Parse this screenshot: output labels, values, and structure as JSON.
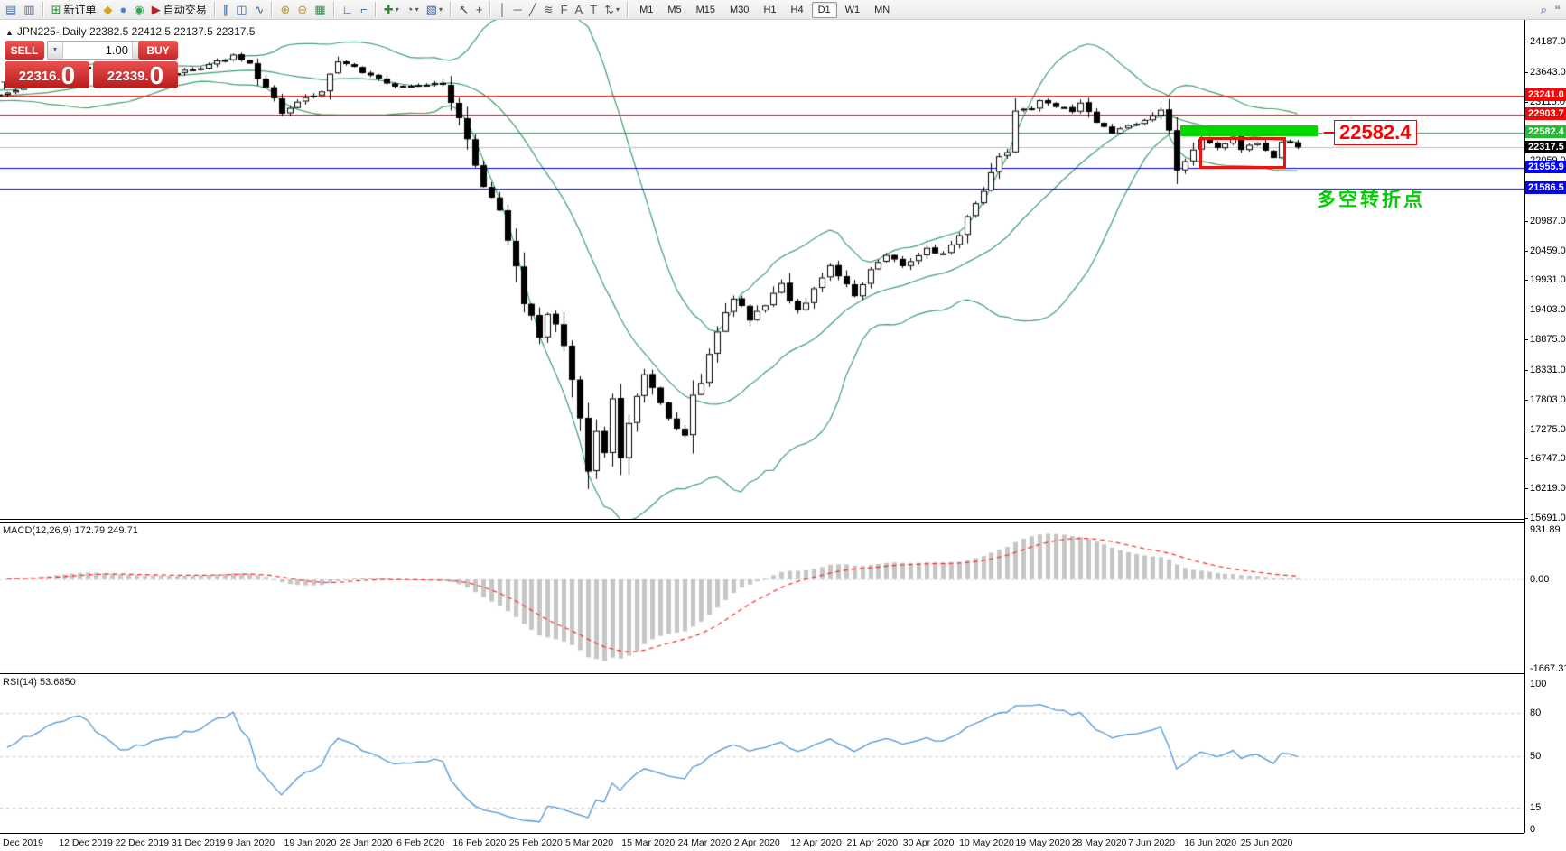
{
  "toolbar": {
    "items": [
      {
        "name": "market-watch-icon",
        "glyph": "▤",
        "color": "#4a6fa5"
      },
      {
        "name": "data-window-icon",
        "glyph": "▥",
        "color": "#4a6fa5"
      },
      {
        "sep": true
      },
      {
        "name": "new-order-icon",
        "glyph": "⊞",
        "color": "#2e8b2e",
        "label": "新订单"
      },
      {
        "name": "metaeditor-icon",
        "glyph": "◆",
        "color": "#d9a520"
      },
      {
        "name": "experts-icon",
        "glyph": "●",
        "color": "#4a84d4"
      },
      {
        "name": "signals-icon",
        "glyph": "◉",
        "color": "#2faa4a"
      },
      {
        "name": "autotrading-icon",
        "glyph": "▶",
        "color": "#bb2222",
        "label": "自动交易"
      },
      {
        "sep": true
      },
      {
        "name": "bar-chart-icon",
        "glyph": "∥",
        "color": "#37639b"
      },
      {
        "name": "candlestick-chart-icon",
        "glyph": "◫",
        "color": "#37639b"
      },
      {
        "name": "line-chart-icon",
        "glyph": "∿",
        "color": "#37639b"
      },
      {
        "sep": true
      },
      {
        "name": "zoom-in-icon",
        "glyph": "⊕",
        "color": "#b8962e"
      },
      {
        "name": "zoom-out-icon",
        "glyph": "⊖",
        "color": "#b8962e"
      },
      {
        "name": "tile-windows-icon",
        "glyph": "▦",
        "color": "#3b8c4a"
      },
      {
        "sep": true
      },
      {
        "name": "chart-shift-icon",
        "glyph": "∟",
        "color": "#37639b"
      },
      {
        "name": "auto-scroll-icon",
        "glyph": "⌐",
        "color": "#37639b"
      },
      {
        "sep": true
      },
      {
        "name": "indicators-icon",
        "glyph": "✚",
        "color": "#2e8b2e",
        "dd": true
      },
      {
        "name": "periods-icon",
        "glyph": "◔",
        "color": "#37639b",
        "dd": true
      },
      {
        "name": "templates-icon",
        "glyph": "▧",
        "color": "#37639b",
        "dd": true
      },
      {
        "sep": true
      },
      {
        "name": "cursor-icon",
        "glyph": "↖",
        "color": "#333333"
      },
      {
        "name": "crosshair-icon",
        "glyph": "+",
        "color": "#333333"
      },
      {
        "sep": true
      },
      {
        "name": "vertical-line-icon",
        "glyph": "│",
        "color": "#555555"
      },
      {
        "name": "horizontal-line-icon",
        "glyph": "─",
        "color": "#555555"
      },
      {
        "name": "trendline-icon",
        "glyph": "╱",
        "color": "#555555"
      },
      {
        "name": "equidistant-channel-icon",
        "glyph": "≋",
        "color": "#555555"
      },
      {
        "name": "fibonacci-icon",
        "glyph": "F",
        "color": "#555555"
      },
      {
        "name": "text-icon",
        "glyph": "A",
        "color": "#555555"
      },
      {
        "name": "text-label-icon",
        "glyph": "T",
        "color": "#555555"
      },
      {
        "name": "arrows-icon",
        "glyph": "⇅",
        "color": "#555555",
        "dd": true
      },
      {
        "sep": true
      }
    ],
    "timeframes": [
      {
        "label": "M1"
      },
      {
        "label": "M5"
      },
      {
        "label": "M15"
      },
      {
        "label": "M30"
      },
      {
        "label": "H1"
      },
      {
        "label": "H4"
      },
      {
        "label": "D1",
        "active": true
      },
      {
        "label": "W1"
      },
      {
        "label": "MN"
      }
    ],
    "right_items": [
      {
        "name": "search-icon",
        "glyph": "⌕",
        "color": "#3a6ea5"
      },
      {
        "name": "chat-icon",
        "glyph": "❝",
        "color": "#8aa0b8"
      }
    ]
  },
  "chart": {
    "collapse_arrow": "▲",
    "symbol_header": "JPN225-,Daily  22382.5 22412.5 22137.5 22317.5",
    "stray_label": "T"
  },
  "trade_panel": {
    "sell_label": "SELL",
    "buy_label": "BUY",
    "volume": "1.00",
    "spin_down": "▼",
    "spin_up": "▲",
    "sell_price": "22316.",
    "sell_big_digit": "0",
    "buy_price": "22339.",
    "buy_big_digit": "0"
  },
  "price_axis": {
    "ticks": [
      "24187.0",
      "23643.0",
      "23115.0",
      "22059.0",
      "21531.0",
      "20987.0",
      "20459.0",
      "19931.0",
      "19403.0",
      "18875.0",
      "18331.0",
      "17803.0",
      "17275.0",
      "16747.0",
      "16219.0",
      "15691.0"
    ],
    "badges": [
      {
        "text": "23241.0",
        "bg": "#ff0000",
        "fg": "#ffffff"
      },
      {
        "text": "22903.7",
        "bg": "#ff0000",
        "fg": "#ffffff"
      },
      {
        "text": "22582.4",
        "bg": "#1fbf2f",
        "fg": "#ffffff"
      },
      {
        "text": "22317.5",
        "bg": "#000000",
        "fg": "#ffffff"
      },
      {
        "text": "21955.9",
        "bg": "#0000ff",
        "fg": "#ffffff"
      },
      {
        "text": "21586.5",
        "bg": "#0000ff",
        "fg": "#ffffff"
      }
    ]
  },
  "levels": [
    {
      "price": 23241.0,
      "color": "#ff0000"
    },
    {
      "price": 22903.7,
      "color": "#ff0000"
    },
    {
      "price": 22582.4,
      "color": "#00b050"
    },
    {
      "price": 22317.5,
      "color": "#c0c0c0"
    },
    {
      "price": 21955.9,
      "color": "#0000ff"
    },
    {
      "price": 21586.5,
      "color": "#0000ff"
    }
  ],
  "annotations": {
    "callout": {
      "text": "22582.4",
      "price": 22582.4,
      "color": "#ff0000"
    },
    "note": {
      "text": "多空转折点",
      "color": "#00cc00"
    },
    "green_box": {
      "i1": 145.5,
      "i2": 162.5,
      "p1": 22710,
      "p2": 22515,
      "fill": "#00d800"
    },
    "red_box": {
      "i1": 147.8,
      "i2": 158.6,
      "p1": 22500,
      "p2": 21935,
      "stroke": "#ee1111"
    }
  },
  "macd": {
    "label": "MACD(12,26,9) 172.79 249.71",
    "scale_labels": [
      "931.89",
      "0.00",
      "-1667.31"
    ],
    "histogram_color": "#c6c6c6",
    "signal_color": "#ff2a2a"
  },
  "rsi": {
    "label": "RSI(14) 53.6850",
    "scale_labels": [
      "100",
      "80",
      "50",
      "15",
      "0"
    ],
    "dashed_levels": [
      80,
      50,
      15
    ],
    "line_color": "#4f96d8"
  },
  "date_axis": {
    "labels": [
      "Dec 2019",
      "12 Dec 2019",
      "22 Dec 2019",
      "31 Dec 2019",
      "9 Jan 2020",
      "19 Jan 2020",
      "28 Jan 2020",
      "6 Feb 2020",
      "16 Feb 2020",
      "25 Feb 2020",
      "5 Mar 2020",
      "15 Mar 2020",
      "24 Mar 2020",
      "2 Apr 2020",
      "12 Apr 2020",
      "21 Apr 2020",
      "30 Apr 2020",
      "10 May 2020",
      "19 May 2020",
      "28 May 2020",
      "7 Jun 2020",
      "16 Jun 2020",
      "25 Jun 2020"
    ]
  },
  "chart_data": {
    "type": "candlestick",
    "symbol": "JPN225",
    "timeframe": "Daily",
    "ohlc_header": {
      "open": 22382.5,
      "high": 22412.5,
      "low": 22137.5,
      "close": 22317.5
    },
    "y_axis": {
      "top_price": 24187.0,
      "bottom_price": 15691.0
    },
    "indicators": [
      {
        "name": "Bollinger Bands",
        "period": 20,
        "deviation": 2,
        "color": "#3fa06f"
      },
      {
        "name": "MACD",
        "fast": 12,
        "slow": 26,
        "signal": 9,
        "current_main": 172.79,
        "current_signal": 249.71,
        "scale_max": 931.89,
        "scale_min": -1667.31
      },
      {
        "name": "RSI",
        "period": 14,
        "current": 53.685,
        "scale_min": 0,
        "scale_max": 100
      }
    ],
    "warmup": 24,
    "visible_candles": 161,
    "keyframes": [
      [
        0,
        23300
      ],
      [
        9,
        23750
      ],
      [
        14,
        23500
      ],
      [
        23,
        23700
      ],
      [
        28,
        23950
      ],
      [
        30,
        23800
      ],
      [
        34,
        22950
      ],
      [
        39,
        23350
      ],
      [
        41,
        23850
      ],
      [
        44,
        23650
      ],
      [
        48,
        23400
      ],
      [
        54,
        23450
      ],
      [
        56,
        22850
      ],
      [
        58,
        21900
      ],
      [
        61,
        21150
      ],
      [
        62,
        20700
      ],
      [
        64,
        19600
      ],
      [
        66,
        18950
      ],
      [
        67,
        19350
      ],
      [
        69,
        18800
      ],
      [
        71,
        17350
      ],
      [
        72,
        16550
      ],
      [
        73,
        17300
      ],
      [
        74,
        16900
      ],
      [
        75,
        17800
      ],
      [
        76,
        16747
      ],
      [
        77,
        17550
      ],
      [
        79,
        18300
      ],
      [
        80,
        18000
      ],
      [
        82,
        17500
      ],
      [
        84,
        17100
      ],
      [
        85,
        17800
      ],
      [
        87,
        18600
      ],
      [
        89,
        19350
      ],
      [
        90,
        19650
      ],
      [
        92,
        19250
      ],
      [
        94,
        19550
      ],
      [
        96,
        19900
      ],
      [
        98,
        19400
      ],
      [
        100,
        19800
      ],
      [
        102,
        20200
      ],
      [
        105,
        19650
      ],
      [
        107,
        20100
      ],
      [
        109,
        20400
      ],
      [
        111,
        20200
      ],
      [
        114,
        20500
      ],
      [
        116,
        20400
      ],
      [
        118,
        20750
      ],
      [
        120,
        21300
      ],
      [
        122,
        21800
      ],
      [
        124,
        22350
      ],
      [
        125,
        22900
      ],
      [
        127,
        23050
      ],
      [
        128,
        23180
      ],
      [
        130,
        23050
      ],
      [
        132,
        22950
      ],
      [
        133,
        23100
      ],
      [
        135,
        22800
      ],
      [
        137,
        22550
      ],
      [
        138,
        22650
      ],
      [
        140,
        22750
      ],
      [
        142,
        22900
      ],
      [
        143,
        23000
      ],
      [
        144,
        22750
      ],
      [
        145,
        21900
      ],
      [
        146,
        22100
      ],
      [
        148,
        22450
      ],
      [
        150,
        22300
      ],
      [
        152,
        22500
      ],
      [
        153,
        22250
      ],
      [
        155,
        22400
      ],
      [
        157,
        22150
      ],
      [
        158,
        22450
      ],
      [
        160,
        22317.5
      ]
    ]
  }
}
